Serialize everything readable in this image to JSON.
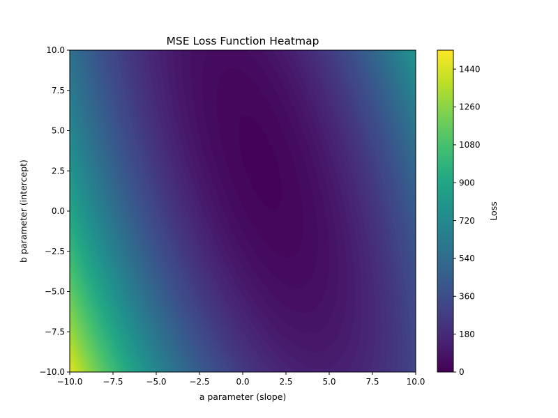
{
  "chart_data": {
    "type": "heatmap",
    "title": "MSE Loss Function Heatmap",
    "xlabel": "a parameter (slope)",
    "ylabel": "b parameter (intercept)",
    "xlim": [
      -10,
      10
    ],
    "ylim": [
      -10,
      10
    ],
    "x_ticks": [
      "−10.0",
      "−7.5",
      "−5.0",
      "−2.5",
      "0.0",
      "2.5",
      "5.0",
      "7.5",
      "10.0"
    ],
    "y_ticks": [
      "−10.0",
      "−7.5",
      "−5.0",
      "−2.5",
      "0.0",
      "2.5",
      "5.0",
      "7.5",
      "10.0"
    ],
    "colorbar": {
      "label": "Loss",
      "range": [
        0,
        1530
      ],
      "ticks": [
        "0",
        "180",
        "360",
        "540",
        "720",
        "900",
        "1080",
        "1260",
        "1440"
      ],
      "colormap": "viridis"
    },
    "surface": {
      "description_free": true,
      "minimum": {
        "a": 1.0,
        "b": 3.0,
        "loss": 12
      },
      "corner_values": [
        {
          "a": -10,
          "b": -10,
          "loss": 1500
        },
        {
          "a": -10,
          "b": 10,
          "loss": 600
        },
        {
          "a": 10,
          "b": 10,
          "loss": 730
        },
        {
          "a": 10,
          "b": -10,
          "loss": 300
        }
      ]
    },
    "grid": false,
    "legend": "none"
  }
}
